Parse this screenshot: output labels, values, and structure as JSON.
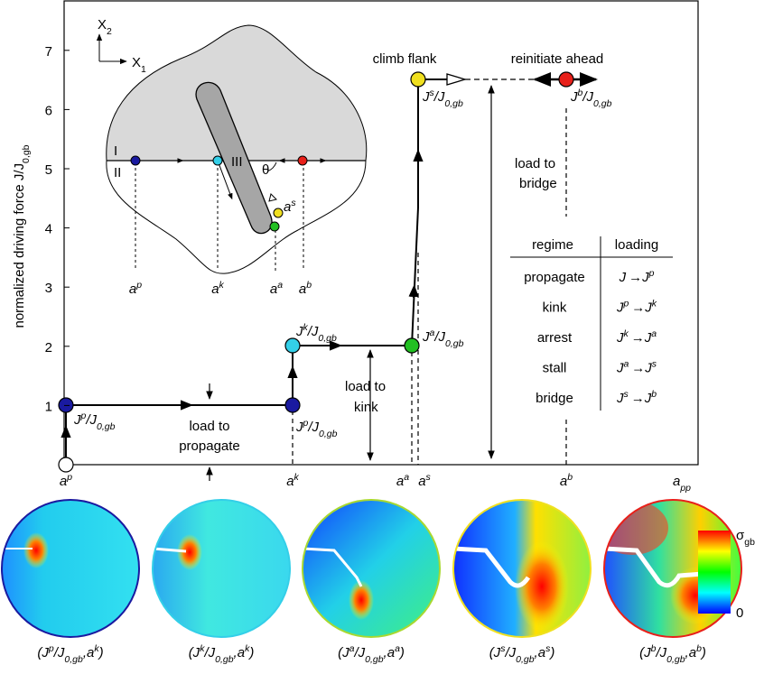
{
  "plot": {
    "y_label": [
      "normalized driving force J/J",
      "0,gb"
    ],
    "y_ticks": [
      1,
      2,
      3,
      4,
      5,
      6,
      7
    ],
    "x_ticks": [
      [
        "a",
        "p"
      ],
      [
        "a",
        "k"
      ],
      [
        "a",
        "a"
      ],
      [
        "a",
        "s"
      ],
      [
        "a",
        "b"
      ]
    ],
    "x_end": [
      "a",
      "pp"
    ],
    "point_labels": [
      [
        "J",
        "p",
        "/J",
        "0,gb"
      ],
      [
        "J",
        "p",
        "/J",
        "0,gb"
      ],
      [
        "J",
        "k",
        "/J",
        "0,gb"
      ],
      [
        "J",
        "a",
        "/J",
        "0,gb"
      ],
      [
        "J",
        "s",
        "/J",
        "0,gb"
      ],
      [
        "J",
        "b",
        "/J",
        "0,gb"
      ]
    ],
    "climb_flank": "climb flank",
    "reinitiate_ahead": "reinitiate ahead",
    "load_to_bridge": [
      "load to",
      "bridge"
    ],
    "load_to_kink": [
      "load to",
      "kink"
    ],
    "load_to_propagate": [
      "load to",
      "propagate"
    ]
  },
  "inset": {
    "x2": [
      "X",
      "2"
    ],
    "x1": [
      "X",
      "1"
    ],
    "regions": [
      "I",
      "II",
      "III"
    ],
    "angle": "θ",
    "as_label": [
      "a",
      "s"
    ],
    "ticks": [
      [
        "a",
        "p"
      ],
      [
        "a",
        "k"
      ],
      [
        "a",
        "a"
      ],
      [
        "a",
        "b"
      ]
    ]
  },
  "table": {
    "headers": [
      "regime",
      "loading"
    ],
    "rows": [
      {
        "regime": "propagate",
        "loading": [
          "J",
          "→",
          "J",
          "p"
        ]
      },
      {
        "regime": "kink",
        "loading": [
          "J",
          "p",
          "→",
          "J",
          "k"
        ]
      },
      {
        "regime": "arrest",
        "loading": [
          "J",
          "k",
          "→",
          "J",
          "a"
        ]
      },
      {
        "regime": "stall",
        "loading": [
          "J",
          "a",
          "→",
          "J",
          "s"
        ]
      },
      {
        "regime": "bridge",
        "loading": [
          "J",
          "s",
          "→",
          "J",
          "b"
        ]
      }
    ]
  },
  "colorbar": {
    "label": [
      "σ",
      "gb"
    ],
    "min": "0"
  },
  "panels": [
    [
      "(J",
      "p",
      "/J",
      "0,gb",
      ",a",
      "k",
      ")"
    ],
    [
      "(J",
      "k",
      "/J",
      "0,gb",
      ",a",
      "k",
      ")"
    ],
    [
      "(J",
      "a",
      "/J",
      "0,gb",
      ",a",
      "a",
      ")"
    ],
    [
      "(J",
      "s",
      "/J",
      "0,gb",
      ",a",
      "s",
      ")"
    ],
    [
      "(J",
      "b",
      "/J",
      "0,gb",
      ",a",
      "b",
      ")"
    ]
  ]
}
